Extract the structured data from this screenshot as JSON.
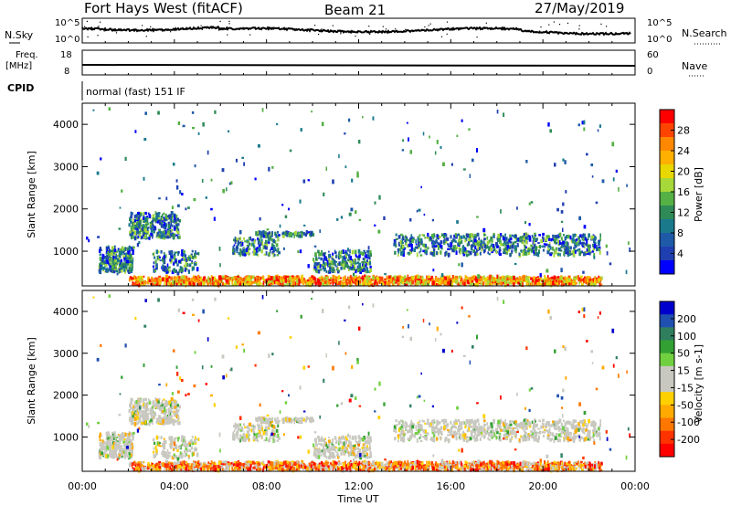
{
  "header": {
    "station": "Fort Hays West (fitACF)",
    "beam": "Beam 21",
    "date": "27/May/2019"
  },
  "top_panels": {
    "nsky_label": "N.Sky",
    "nsearch_label": "N.Search",
    "nsky_ticks": [
      "10^5",
      "10^0"
    ],
    "nsearch_ticks": [
      "10^5",
      "10^0"
    ],
    "freq_label_top": "Freq.",
    "freq_label_unit": "[MHz]",
    "freq_ticks": [
      "18",
      "8"
    ],
    "nave_label": "Nave",
    "nave_ticks": [
      "60",
      "0"
    ],
    "cpid_label": "CPID",
    "cpid_text": "normal (fast) 151 IF"
  },
  "chart_data": [
    {
      "type": "heatmap",
      "name": "power",
      "ylabel": "Slant Range [km]",
      "yticks": [
        "4000",
        "3000",
        "2000",
        "1000"
      ],
      "ylim": [
        180,
        4500
      ],
      "xlabel": "Time UT",
      "xticks": [
        "00:00",
        "04:00",
        "08:00",
        "12:00",
        "16:00",
        "20:00",
        "00:00"
      ],
      "xlim_hours": [
        0,
        24
      ],
      "colorbar": {
        "label": "Power [dB]",
        "ticks": [
          "28",
          "24",
          "20",
          "16",
          "12",
          "8",
          "4"
        ],
        "colors": [
          "#ff0000",
          "#ff4400",
          "#ff8800",
          "#ffb000",
          "#e8d800",
          "#a6d83a",
          "#55b045",
          "#2e8b57",
          "#1a7a8c",
          "#1f5aa8",
          "#1f3fb0",
          "#0000ff"
        ]
      }
    },
    {
      "type": "heatmap",
      "name": "velocity",
      "ylabel": "Slant Range [km]",
      "yticks": [
        "4000",
        "3000",
        "2000",
        "1000"
      ],
      "ylim": [
        180,
        4500
      ],
      "xlabel": "Time UT",
      "xticks": [
        "00:00",
        "04:00",
        "08:00",
        "12:00",
        "16:00",
        "20:00",
        "00:00"
      ],
      "xlim_hours": [
        0,
        24
      ],
      "colorbar": {
        "label": "Velocity [m s-1]",
        "ticks": [
          "200",
          "100",
          "50",
          "15",
          "-15",
          "-50",
          "-100",
          "-200"
        ],
        "colors": [
          "#0000cc",
          "#1f4fb0",
          "#2f7f5f",
          "#33a033",
          "#70d040",
          "#c8c8c0",
          "#c8c8c0",
          "#ffd000",
          "#ffaa00",
          "#ff7700",
          "#ff3300",
          "#ff0000"
        ]
      }
    }
  ]
}
